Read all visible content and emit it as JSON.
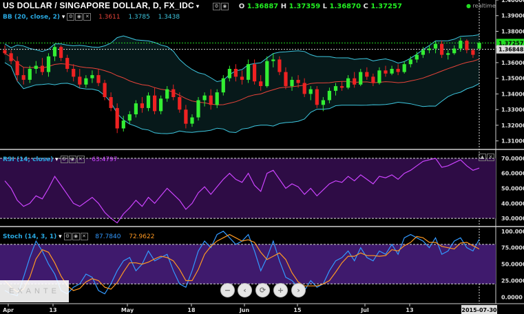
{
  "header": {
    "title": "US DOLLAR / SINGAPORE DOLLAR, D, FX_IDC",
    "ohlc": {
      "o_label": "O",
      "o": "1.36887",
      "h_label": "H",
      "h": "1.37359",
      "l_label": "L",
      "l": "1.36870",
      "c_label": "C",
      "c": "1.37257"
    },
    "realtime": "realtime"
  },
  "indicators": {
    "bb": {
      "label": "BB (20, close, 2)",
      "v1": "1.3611",
      "v2": "1.3785",
      "v3": "1.3438"
    },
    "rsi": {
      "label": "RSI (14, close)",
      "value": "63.4797"
    },
    "stoch": {
      "label": "Stoch (14, 3, 1)",
      "k": "87.7840",
      "d": "72.9622"
    }
  },
  "watermark": "EXANTE",
  "nav_buttons": {
    "zoom_out": "−",
    "back": "‹",
    "reset": "⟳",
    "zoom_in": "+",
    "forward": "›"
  },
  "colors": {
    "bg": "#000000",
    "up": "#33ee33",
    "down": "#ee2222",
    "bb_band": "#3ec7e0",
    "bb_mid": "#e8443a",
    "rsi_line": "#cc44ff",
    "rsi_fill": "#2e0c45",
    "stoch_k": "#3399ff",
    "stoch_d": "#ff9922",
    "stoch_fill": "#3f1a6d",
    "price_line": "#22dd22"
  },
  "chart_data": {
    "type": "candlestick",
    "x_ticks": [
      "Apr",
      "13",
      "May",
      "18",
      "Jun",
      "15",
      "Jul",
      "13"
    ],
    "date_badge": "2015-07-30",
    "price": {
      "y_ticks": [
        "1.40000",
        "1.39000",
        "1.38000",
        "1.37000",
        "1.36000",
        "1.35000",
        "1.34000",
        "1.33000",
        "1.32000",
        "1.31000"
      ],
      "ylim": [
        1.305,
        1.4
      ],
      "last_price": "1.37257",
      "cursor_price": "1.36848",
      "candles": [
        [
          1.368,
          1.371,
          1.365,
          1.366
        ],
        [
          1.366,
          1.368,
          1.359,
          1.361
        ],
        [
          1.361,
          1.364,
          1.348,
          1.352
        ],
        [
          1.352,
          1.357,
          1.346,
          1.349
        ],
        [
          1.349,
          1.358,
          1.347,
          1.356
        ],
        [
          1.356,
          1.361,
          1.353,
          1.358
        ],
        [
          1.358,
          1.363,
          1.352,
          1.354
        ],
        [
          1.354,
          1.366,
          1.351,
          1.364
        ],
        [
          1.364,
          1.372,
          1.361,
          1.37
        ],
        [
          1.37,
          1.371,
          1.361,
          1.363
        ],
        [
          1.363,
          1.365,
          1.354,
          1.356
        ],
        [
          1.356,
          1.359,
          1.348,
          1.351
        ],
        [
          1.351,
          1.356,
          1.344,
          1.346
        ],
        [
          1.346,
          1.352,
          1.344,
          1.35
        ],
        [
          1.35,
          1.355,
          1.347,
          1.352
        ],
        [
          1.352,
          1.356,
          1.345,
          1.347
        ],
        [
          1.347,
          1.349,
          1.336,
          1.338
        ],
        [
          1.338,
          1.341,
          1.329,
          1.331
        ],
        [
          1.331,
          1.334,
          1.315,
          1.318
        ],
        [
          1.318,
          1.326,
          1.316,
          1.323
        ],
        [
          1.323,
          1.329,
          1.321,
          1.327
        ],
        [
          1.327,
          1.336,
          1.325,
          1.334
        ],
        [
          1.334,
          1.338,
          1.328,
          1.331
        ],
        [
          1.331,
          1.341,
          1.329,
          1.339
        ],
        [
          1.339,
          1.344,
          1.327,
          1.329
        ],
        [
          1.329,
          1.339,
          1.327,
          1.337
        ],
        [
          1.337,
          1.345,
          1.335,
          1.343
        ],
        [
          1.343,
          1.346,
          1.336,
          1.338
        ],
        [
          1.338,
          1.341,
          1.328,
          1.33
        ],
        [
          1.33,
          1.333,
          1.318,
          1.321
        ],
        [
          1.321,
          1.327,
          1.319,
          1.325
        ],
        [
          1.325,
          1.338,
          1.323,
          1.336
        ],
        [
          1.336,
          1.341,
          1.332,
          1.339
        ],
        [
          1.339,
          1.343,
          1.33,
          1.333
        ],
        [
          1.333,
          1.343,
          1.331,
          1.341
        ],
        [
          1.341,
          1.352,
          1.339,
          1.35
        ],
        [
          1.35,
          1.358,
          1.348,
          1.356
        ],
        [
          1.356,
          1.359,
          1.348,
          1.351
        ],
        [
          1.351,
          1.355,
          1.346,
          1.349
        ],
        [
          1.349,
          1.362,
          1.347,
          1.359
        ],
        [
          1.359,
          1.362,
          1.346,
          1.348
        ],
        [
          1.348,
          1.352,
          1.342,
          1.345
        ],
        [
          1.345,
          1.364,
          1.344,
          1.361
        ],
        [
          1.361,
          1.366,
          1.357,
          1.362
        ],
        [
          1.362,
          1.364,
          1.352,
          1.354
        ],
        [
          1.354,
          1.357,
          1.343,
          1.345
        ],
        [
          1.345,
          1.351,
          1.342,
          1.349
        ],
        [
          1.349,
          1.352,
          1.344,
          1.347
        ],
        [
          1.347,
          1.35,
          1.338,
          1.34
        ],
        [
          1.34,
          1.345,
          1.336,
          1.343
        ],
        [
          1.343,
          1.345,
          1.331,
          1.333
        ],
        [
          1.333,
          1.338,
          1.329,
          1.336
        ],
        [
          1.336,
          1.344,
          1.334,
          1.342
        ],
        [
          1.342,
          1.347,
          1.339,
          1.345
        ],
        [
          1.345,
          1.348,
          1.342,
          1.344
        ],
        [
          1.344,
          1.352,
          1.343,
          1.35
        ],
        [
          1.35,
          1.354,
          1.344,
          1.346
        ],
        [
          1.346,
          1.356,
          1.345,
          1.354
        ],
        [
          1.354,
          1.357,
          1.349,
          1.351
        ],
        [
          1.351,
          1.353,
          1.345,
          1.347
        ],
        [
          1.347,
          1.357,
          1.346,
          1.355
        ],
        [
          1.355,
          1.358,
          1.351,
          1.353
        ],
        [
          1.353,
          1.358,
          1.352,
          1.356
        ],
        [
          1.356,
          1.359,
          1.352,
          1.354
        ],
        [
          1.354,
          1.361,
          1.353,
          1.359
        ],
        [
          1.359,
          1.364,
          1.357,
          1.362
        ],
        [
          1.362,
          1.367,
          1.36,
          1.365
        ],
        [
          1.365,
          1.37,
          1.363,
          1.368
        ],
        [
          1.368,
          1.371,
          1.366,
          1.369
        ],
        [
          1.369,
          1.374,
          1.366,
          1.372
        ],
        [
          1.372,
          1.374,
          1.363,
          1.365
        ],
        [
          1.365,
          1.368,
          1.362,
          1.366
        ],
        [
          1.366,
          1.371,
          1.365,
          1.369
        ],
        [
          1.369,
          1.376,
          1.367,
          1.374
        ],
        [
          1.374,
          1.375,
          1.366,
          1.368
        ],
        [
          1.368,
          1.369,
          1.363,
          1.365
        ],
        [
          1.3689,
          1.3736,
          1.3687,
          1.3726
        ]
      ]
    },
    "rsi": {
      "y_ticks": [
        "70.0000",
        "60.0000",
        "50.0000",
        "40.0000",
        "30.0000"
      ],
      "ylim": [
        25,
        75
      ],
      "levels": [
        70,
        30
      ],
      "values": [
        55,
        50,
        42,
        38,
        40,
        45,
        43,
        50,
        58,
        52,
        46,
        40,
        38,
        41,
        44,
        40,
        34,
        30,
        27,
        33,
        37,
        42,
        38,
        44,
        40,
        45,
        50,
        46,
        42,
        36,
        40,
        47,
        51,
        46,
        51,
        56,
        60,
        56,
        54,
        60,
        52,
        48,
        60,
        62,
        56,
        50,
        53,
        51,
        46,
        50,
        45,
        49,
        53,
        55,
        54,
        58,
        55,
        59,
        56,
        53,
        58,
        57,
        59,
        56,
        60,
        62,
        65,
        68,
        69,
        70,
        64,
        65,
        67,
        69,
        65,
        62,
        63.48
      ]
    },
    "stoch": {
      "y_ticks": [
        "100.0000",
        "75.0000",
        "50.0000",
        "25.0000",
        "0.0000"
      ],
      "ylim": [
        -10,
        105
      ],
      "levels": [
        80,
        20
      ],
      "k": [
        10,
        5,
        2,
        30,
        60,
        85,
        70,
        50,
        35,
        10,
        5,
        15,
        20,
        35,
        30,
        10,
        5,
        20,
        40,
        55,
        60,
        40,
        50,
        70,
        55,
        60,
        65,
        40,
        20,
        15,
        40,
        70,
        85,
        75,
        95,
        100,
        90,
        80,
        85,
        95,
        70,
        40,
        60,
        85,
        55,
        30,
        25,
        15,
        10,
        25,
        15,
        20,
        40,
        55,
        60,
        70,
        55,
        75,
        60,
        55,
        70,
        65,
        80,
        65,
        90,
        95,
        90,
        85,
        75,
        90,
        65,
        70,
        85,
        90,
        75,
        70,
        87.78
      ],
      "d": [
        25,
        15,
        8,
        12,
        30,
        58,
        72,
        68,
        52,
        32,
        17,
        10,
        13,
        23,
        28,
        25,
        15,
        12,
        22,
        38,
        52,
        52,
        50,
        53,
        58,
        62,
        60,
        55,
        42,
        25,
        25,
        42,
        65,
        77,
        85,
        90,
        95,
        90,
        85,
        87,
        83,
        68,
        57,
        62,
        67,
        57,
        37,
        23,
        17,
        17,
        17,
        20,
        25,
        38,
        52,
        62,
        62,
        67,
        63,
        63,
        62,
        63,
        72,
        70,
        78,
        83,
        92,
        90,
        83,
        83,
        77,
        75,
        73,
        82,
        83,
        78,
        72.96
      ]
    }
  }
}
